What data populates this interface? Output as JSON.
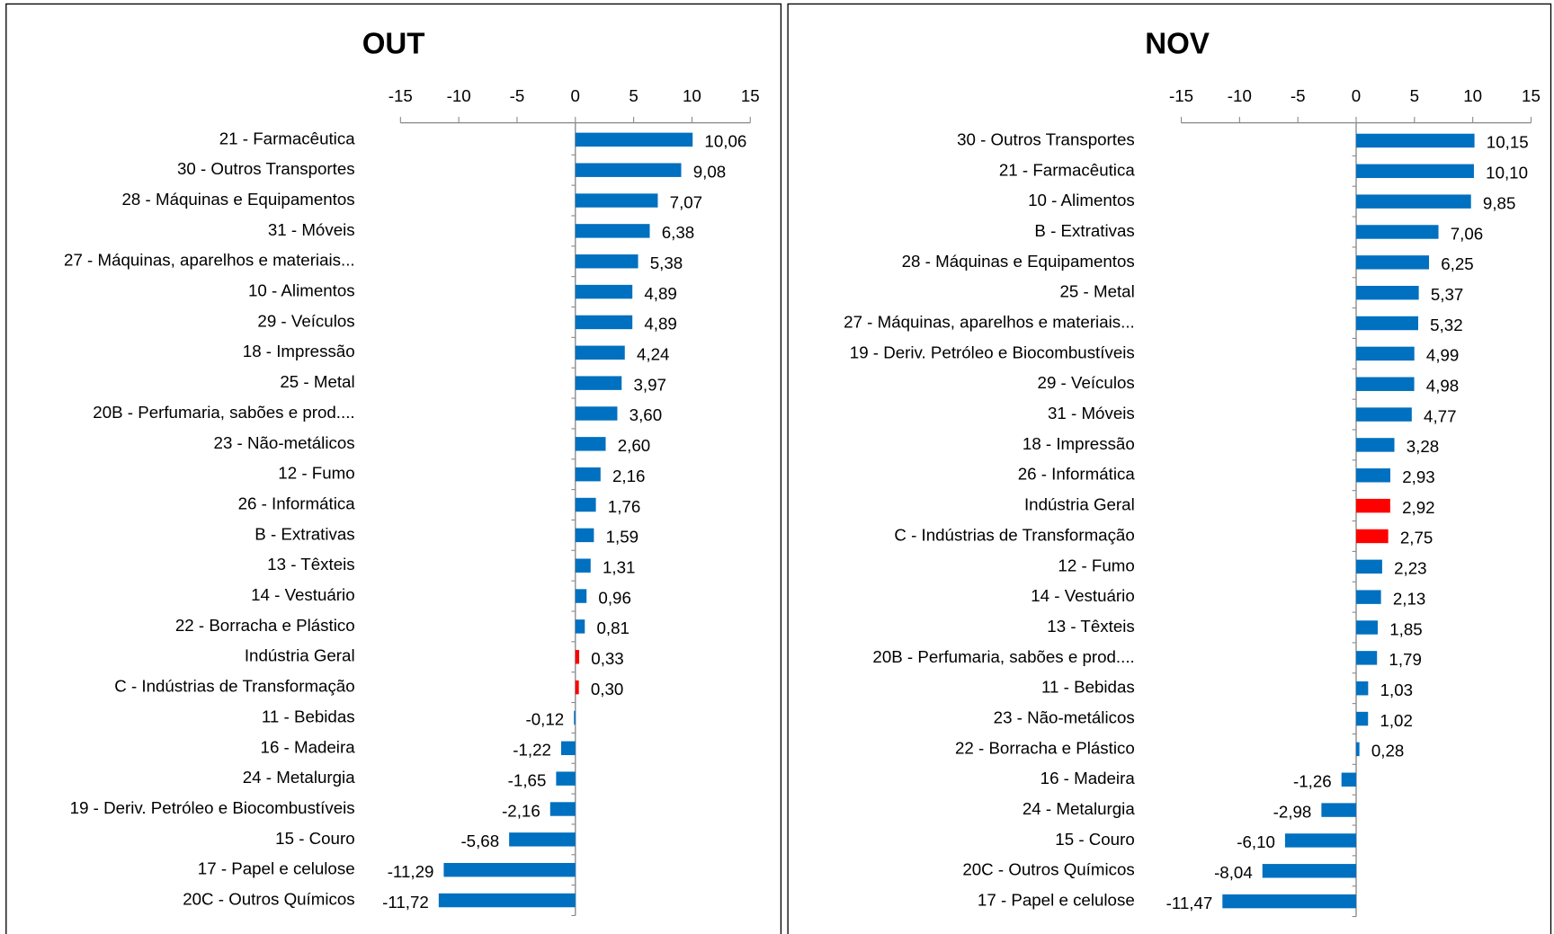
{
  "chart_data": [
    {
      "type": "bar",
      "orientation": "horizontal",
      "title": "OUT",
      "categories": [
        "21 - Farmacêutica",
        "30 - Outros Transportes",
        "28 - Máquinas e Equipamentos",
        "31 - Móveis",
        "27 - Máquinas, aparelhos e materiais...",
        "10 - Alimentos",
        "29 - Veículos",
        "18 - Impressão",
        "25 - Metal",
        "20B - Perfumaria, sabões e prod....",
        "23 - Não-metálicos",
        "12 - Fumo",
        "26 - Informática",
        "B - Extrativas",
        "13 - Têxteis",
        "14 - Vestuário",
        "22 - Borracha e Plástico",
        "Indústria Geral",
        "C - Indústrias de Transformação",
        "11 - Bebidas",
        "16 - Madeira",
        "24 - Metalurgia",
        "19 - Deriv. Petróleo e Biocombustíveis",
        "15 - Couro",
        "17 - Papel e celulose",
        "20C - Outros Químicos"
      ],
      "values": [
        10.06,
        9.08,
        7.07,
        6.38,
        5.38,
        4.89,
        4.89,
        4.24,
        3.97,
        3.6,
        2.6,
        2.16,
        1.76,
        1.59,
        1.31,
        0.96,
        0.81,
        0.33,
        0.3,
        -0.12,
        -1.22,
        -1.65,
        -2.16,
        -5.68,
        -11.29,
        -11.72
      ],
      "value_labels": [
        "10,06",
        "9,08",
        "7,07",
        "6,38",
        "5,38",
        "4,89",
        "4,89",
        "4,24",
        "3,97",
        "3,60",
        "2,60",
        "2,16",
        "1,76",
        "1,59",
        "1,31",
        "0,96",
        "0,81",
        "0,33",
        "0,30",
        "-0,12",
        "-1,22",
        "-1,65",
        "-2,16",
        "-5,68",
        "-11,29",
        "-11,72"
      ],
      "colors": [
        "#0070c0",
        "#0070c0",
        "#0070c0",
        "#0070c0",
        "#0070c0",
        "#0070c0",
        "#0070c0",
        "#0070c0",
        "#0070c0",
        "#0070c0",
        "#0070c0",
        "#0070c0",
        "#0070c0",
        "#0070c0",
        "#0070c0",
        "#0070c0",
        "#0070c0",
        "#ff0000",
        "#ff0000",
        "#0070c0",
        "#0070c0",
        "#0070c0",
        "#0070c0",
        "#0070c0",
        "#0070c0",
        "#0070c0"
      ],
      "xlim": [
        -15,
        15
      ],
      "xticks": [
        -15,
        -10,
        -5,
        0,
        5,
        10,
        15
      ]
    },
    {
      "type": "bar",
      "orientation": "horizontal",
      "title": "NOV",
      "categories": [
        "30 - Outros Transportes",
        "21 - Farmacêutica",
        "10 - Alimentos",
        "B - Extrativas",
        "28 - Máquinas e Equipamentos",
        "25 - Metal",
        "27 - Máquinas, aparelhos e materiais...",
        "19 - Deriv. Petróleo e Biocombustíveis",
        "29 - Veículos",
        "31 - Móveis",
        "18 - Impressão",
        "26 - Informática",
        "Indústria Geral",
        "C - Indústrias de Transformação",
        "12 - Fumo",
        "14 - Vestuário",
        "13 - Têxteis",
        "20B - Perfumaria, sabões e prod....",
        "11 - Bebidas",
        "23 - Não-metálicos",
        "22 - Borracha e Plástico",
        "16 - Madeira",
        "24 - Metalurgia",
        "15 - Couro",
        "20C - Outros Químicos",
        "17 - Papel e celulose"
      ],
      "values": [
        10.15,
        10.1,
        9.85,
        7.06,
        6.25,
        5.37,
        5.32,
        4.99,
        4.98,
        4.77,
        3.28,
        2.93,
        2.92,
        2.75,
        2.23,
        2.13,
        1.85,
        1.79,
        1.03,
        1.02,
        0.28,
        -1.26,
        -2.98,
        -6.1,
        -8.04,
        -11.47
      ],
      "value_labels": [
        "10,15",
        "10,10",
        "9,85",
        "7,06",
        "6,25",
        "5,37",
        "5,32",
        "4,99",
        "4,98",
        "4,77",
        "3,28",
        "2,93",
        "2,92",
        "2,75",
        "2,23",
        "2,13",
        "1,85",
        "1,79",
        "1,03",
        "1,02",
        "0,28",
        "-1,26",
        "-2,98",
        "-6,10",
        "-8,04",
        "-11,47"
      ],
      "colors": [
        "#0070c0",
        "#0070c0",
        "#0070c0",
        "#0070c0",
        "#0070c0",
        "#0070c0",
        "#0070c0",
        "#0070c0",
        "#0070c0",
        "#0070c0",
        "#0070c0",
        "#0070c0",
        "#ff0000",
        "#ff0000",
        "#0070c0",
        "#0070c0",
        "#0070c0",
        "#0070c0",
        "#0070c0",
        "#0070c0",
        "#0070c0",
        "#0070c0",
        "#0070c0",
        "#0070c0",
        "#0070c0",
        "#0070c0"
      ],
      "xlim": [
        -15,
        15
      ],
      "xticks": [
        -15,
        -10,
        -5,
        0,
        5,
        10,
        15
      ]
    }
  ]
}
